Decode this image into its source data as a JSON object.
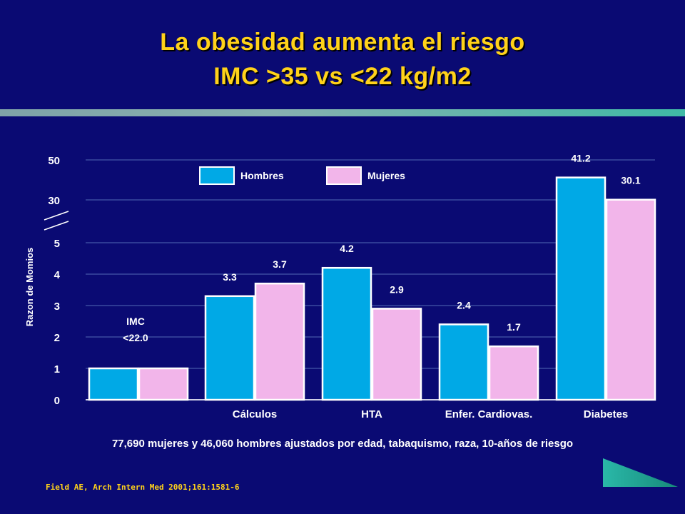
{
  "header": {
    "title_line1": "La obesidad aumenta el riesgo",
    "title_line2": "IMC >35 vs <22 kg/m2"
  },
  "colors": {
    "background": "#0a0a73",
    "title": "#ffd21a",
    "hombres": "#00a9e6",
    "mujeres": "#f2b5ea",
    "grid": "#3a4aa0",
    "text": "#ffffff"
  },
  "chart_data": {
    "type": "bar",
    "ylabel": "Razon de Momios",
    "y_ticks": [
      "0",
      "1",
      "2",
      "3",
      "4",
      "5",
      "30",
      "50"
    ],
    "y_axis_break": true,
    "grid": true,
    "legend": "top-left",
    "baseline_label": "IMC\n<22.0",
    "categories": [
      "",
      "Cálculos",
      "HTA",
      "Enfer. Cardiovas.",
      "Diabetes"
    ],
    "series": [
      {
        "name": "Hombres",
        "values": [
          1.0,
          3.3,
          4.2,
          2.4,
          41.2
        ]
      },
      {
        "name": "Mujeres",
        "values": [
          1.0,
          3.7,
          2.9,
          1.7,
          30.1
        ]
      }
    ],
    "data_labels": [
      [
        "",
        "3.3",
        "4.2",
        "2.4",
        "41.2"
      ],
      [
        "",
        "3.7",
        "2.9",
        "1.7",
        "30.1"
      ]
    ]
  },
  "footnote": "77,690 mujeres y  46,060 hombres ajustados por edad, tabaquismo, raza,  10-años de riesgo",
  "source": "Field AE, Arch Intern Med 2001;161:1581-6"
}
